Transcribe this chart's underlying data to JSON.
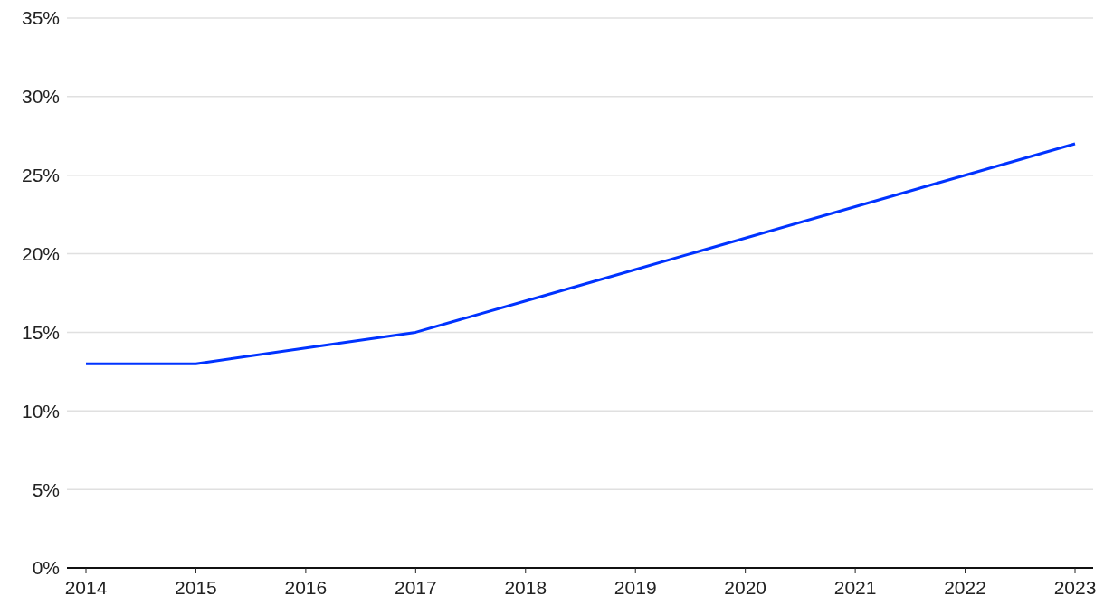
{
  "chart_data": {
    "type": "line",
    "categories": [
      "2014",
      "2015",
      "2016",
      "2017",
      "2018",
      "2019",
      "2020",
      "2021",
      "2022",
      "2023"
    ],
    "series": [
      {
        "color": "#0033ff",
        "values": [
          13,
          13,
          14,
          15,
          17,
          19,
          21,
          23,
          25,
          27
        ]
      }
    ],
    "ylim": [
      0,
      35
    ],
    "yticks": [
      {
        "value": 0,
        "label": "0%"
      },
      {
        "value": 5,
        "label": "5%"
      },
      {
        "value": 10,
        "label": "10%"
      },
      {
        "value": 15,
        "label": "15%"
      },
      {
        "value": 20,
        "label": "20%"
      },
      {
        "value": 25,
        "label": "25%"
      },
      {
        "value": 30,
        "label": "30%"
      },
      {
        "value": 35,
        "label": "35%"
      }
    ],
    "grid": "y",
    "legend": false,
    "marker": "none",
    "line_style": "solid"
  }
}
